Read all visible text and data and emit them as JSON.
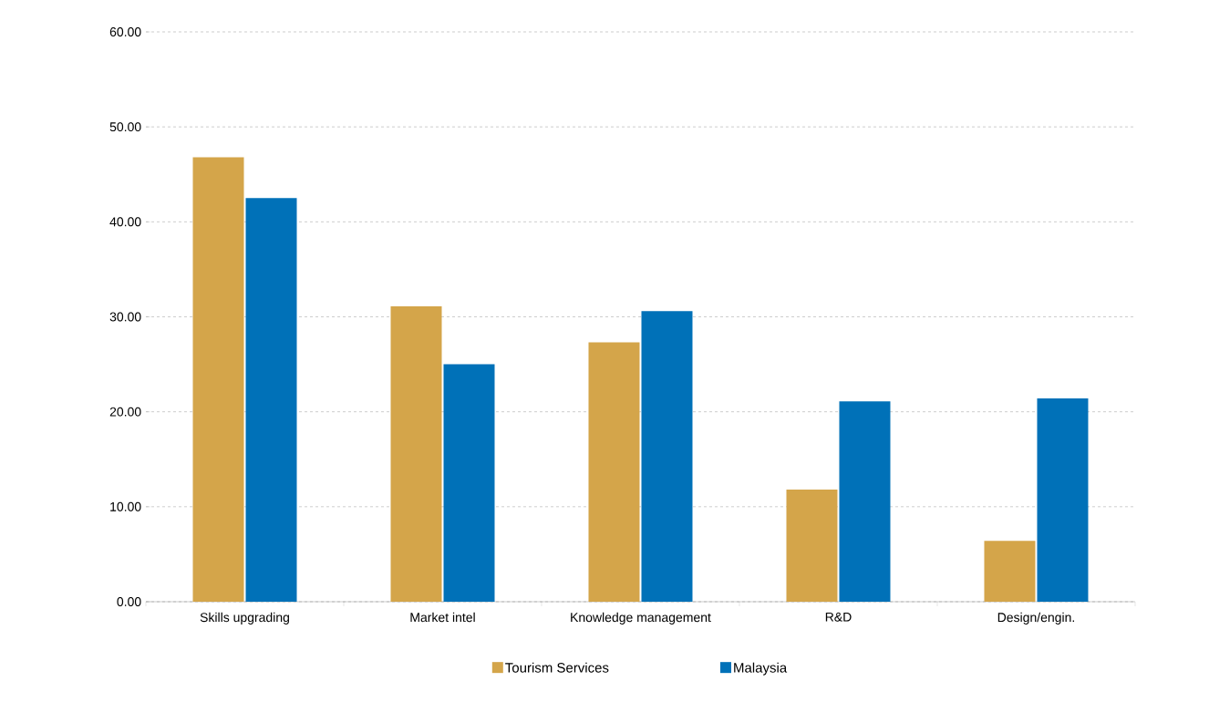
{
  "chart_data": {
    "type": "bar",
    "categories": [
      "Skills upgrading",
      "Market intel",
      "Knowledge management",
      "R&D",
      "Design/engin."
    ],
    "series": [
      {
        "name": "Tourism Services",
        "color": "#d4a54a",
        "values": [
          46.8,
          31.1,
          27.3,
          11.8,
          6.4
        ]
      },
      {
        "name": "Malaysia",
        "color": "#0071b8",
        "values": [
          42.5,
          25.0,
          30.6,
          21.1,
          21.4
        ]
      }
    ],
    "ylim": [
      0,
      60
    ],
    "yticks": [
      {
        "value": 0,
        "label": "0.00"
      },
      {
        "value": 10,
        "label": "10.00"
      },
      {
        "value": 20,
        "label": "20.00"
      },
      {
        "value": 30,
        "label": "30.00"
      },
      {
        "value": 40,
        "label": "40.00"
      },
      {
        "value": 50,
        "label": "50.00"
      },
      {
        "value": 60,
        "label": "60.00"
      }
    ],
    "grid": "y",
    "legend": "bottom"
  }
}
